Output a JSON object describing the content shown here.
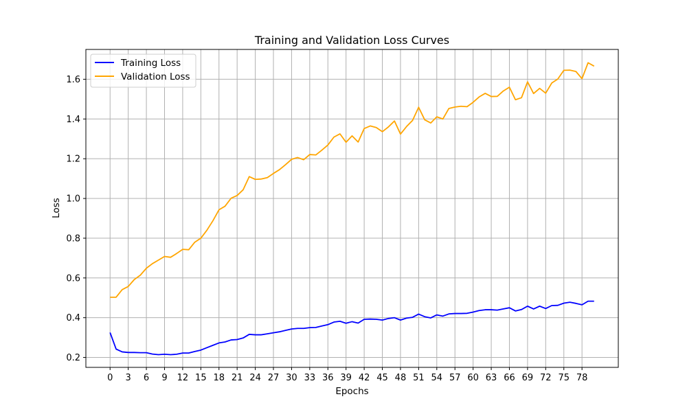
{
  "chart_data": {
    "type": "line",
    "title": "Training and Validation Loss Curves",
    "xlabel": "Epochs",
    "ylabel": "Loss",
    "xlim": [
      -4.0,
      84.0
    ],
    "ylim": [
      0.15,
      1.75
    ],
    "xticks": [
      0,
      3,
      6,
      9,
      12,
      15,
      18,
      21,
      24,
      27,
      30,
      33,
      36,
      39,
      42,
      45,
      48,
      51,
      54,
      57,
      60,
      63,
      66,
      69,
      72,
      75,
      78
    ],
    "yticks": [
      0.2,
      0.4,
      0.6,
      0.8,
      1.0,
      1.2,
      1.4,
      1.6
    ],
    "ytick_labels": [
      "0.2",
      "0.4",
      "0.6",
      "0.8",
      "1.0",
      "1.2",
      "1.4",
      "1.6"
    ],
    "grid": true,
    "legend": "upper-left",
    "series": [
      {
        "name": "Training Loss",
        "color": "#0000ff",
        "x": [
          0,
          1,
          2,
          3,
          4,
          5,
          6,
          7,
          8,
          9,
          10,
          11,
          12,
          13,
          14,
          15,
          16,
          17,
          18,
          19,
          20,
          21,
          22,
          23,
          24,
          25,
          26,
          27,
          28,
          29,
          30,
          31,
          32,
          33,
          34,
          35,
          36,
          37,
          38,
          39,
          40,
          41,
          42,
          43,
          44,
          45,
          46,
          47,
          48,
          49,
          50,
          51,
          52,
          53,
          54,
          55,
          56,
          57,
          58,
          59,
          60,
          61,
          62,
          63,
          64,
          65,
          66,
          67,
          68,
          69,
          70,
          71,
          72,
          73,
          74,
          75,
          76,
          77,
          78,
          79,
          80
        ],
        "values": [
          0.325,
          0.242,
          0.228,
          0.225,
          0.225,
          0.224,
          0.224,
          0.217,
          0.214,
          0.216,
          0.214,
          0.216,
          0.222,
          0.222,
          0.23,
          0.237,
          0.249,
          0.261,
          0.273,
          0.278,
          0.288,
          0.29,
          0.298,
          0.316,
          0.314,
          0.314,
          0.319,
          0.324,
          0.329,
          0.336,
          0.343,
          0.346,
          0.346,
          0.35,
          0.351,
          0.358,
          0.365,
          0.378,
          0.382,
          0.372,
          0.38,
          0.373,
          0.392,
          0.393,
          0.392,
          0.388,
          0.396,
          0.4,
          0.388,
          0.398,
          0.402,
          0.418,
          0.405,
          0.399,
          0.414,
          0.408,
          0.419,
          0.421,
          0.421,
          0.422,
          0.428,
          0.436,
          0.44,
          0.44,
          0.438,
          0.444,
          0.45,
          0.434,
          0.441,
          0.458,
          0.444,
          0.458,
          0.446,
          0.461,
          0.462,
          0.473,
          0.478,
          0.472,
          0.465,
          0.483,
          0.483
        ]
      },
      {
        "name": "Validation Loss",
        "color": "#ffa500",
        "x": [
          0,
          1,
          2,
          3,
          4,
          5,
          6,
          7,
          8,
          9,
          10,
          11,
          12,
          13,
          14,
          15,
          16,
          17,
          18,
          19,
          20,
          21,
          22,
          23,
          24,
          25,
          26,
          27,
          28,
          29,
          30,
          31,
          32,
          33,
          34,
          35,
          36,
          37,
          38,
          39,
          40,
          41,
          42,
          43,
          44,
          45,
          46,
          47,
          48,
          49,
          50,
          51,
          52,
          53,
          54,
          55,
          56,
          57,
          58,
          59,
          60,
          61,
          62,
          63,
          64,
          65,
          66,
          67,
          68,
          69,
          70,
          71,
          72,
          73,
          74,
          75,
          76,
          77,
          78,
          79,
          80
        ],
        "values": [
          0.503,
          0.503,
          0.541,
          0.557,
          0.592,
          0.614,
          0.649,
          0.672,
          0.69,
          0.708,
          0.704,
          0.723,
          0.744,
          0.742,
          0.78,
          0.8,
          0.84,
          0.888,
          0.943,
          0.961,
          1.001,
          1.015,
          1.044,
          1.11,
          1.096,
          1.098,
          1.105,
          1.126,
          1.145,
          1.17,
          1.197,
          1.206,
          1.195,
          1.221,
          1.219,
          1.243,
          1.269,
          1.309,
          1.325,
          1.283,
          1.315,
          1.284,
          1.352,
          1.365,
          1.357,
          1.336,
          1.36,
          1.39,
          1.324,
          1.362,
          1.393,
          1.459,
          1.396,
          1.38,
          1.411,
          1.4,
          1.453,
          1.46,
          1.464,
          1.462,
          1.484,
          1.511,
          1.529,
          1.513,
          1.514,
          1.541,
          1.56,
          1.497,
          1.507,
          1.587,
          1.528,
          1.554,
          1.53,
          1.581,
          1.601,
          1.645,
          1.646,
          1.639,
          1.603,
          1.683,
          1.666
        ]
      }
    ]
  }
}
